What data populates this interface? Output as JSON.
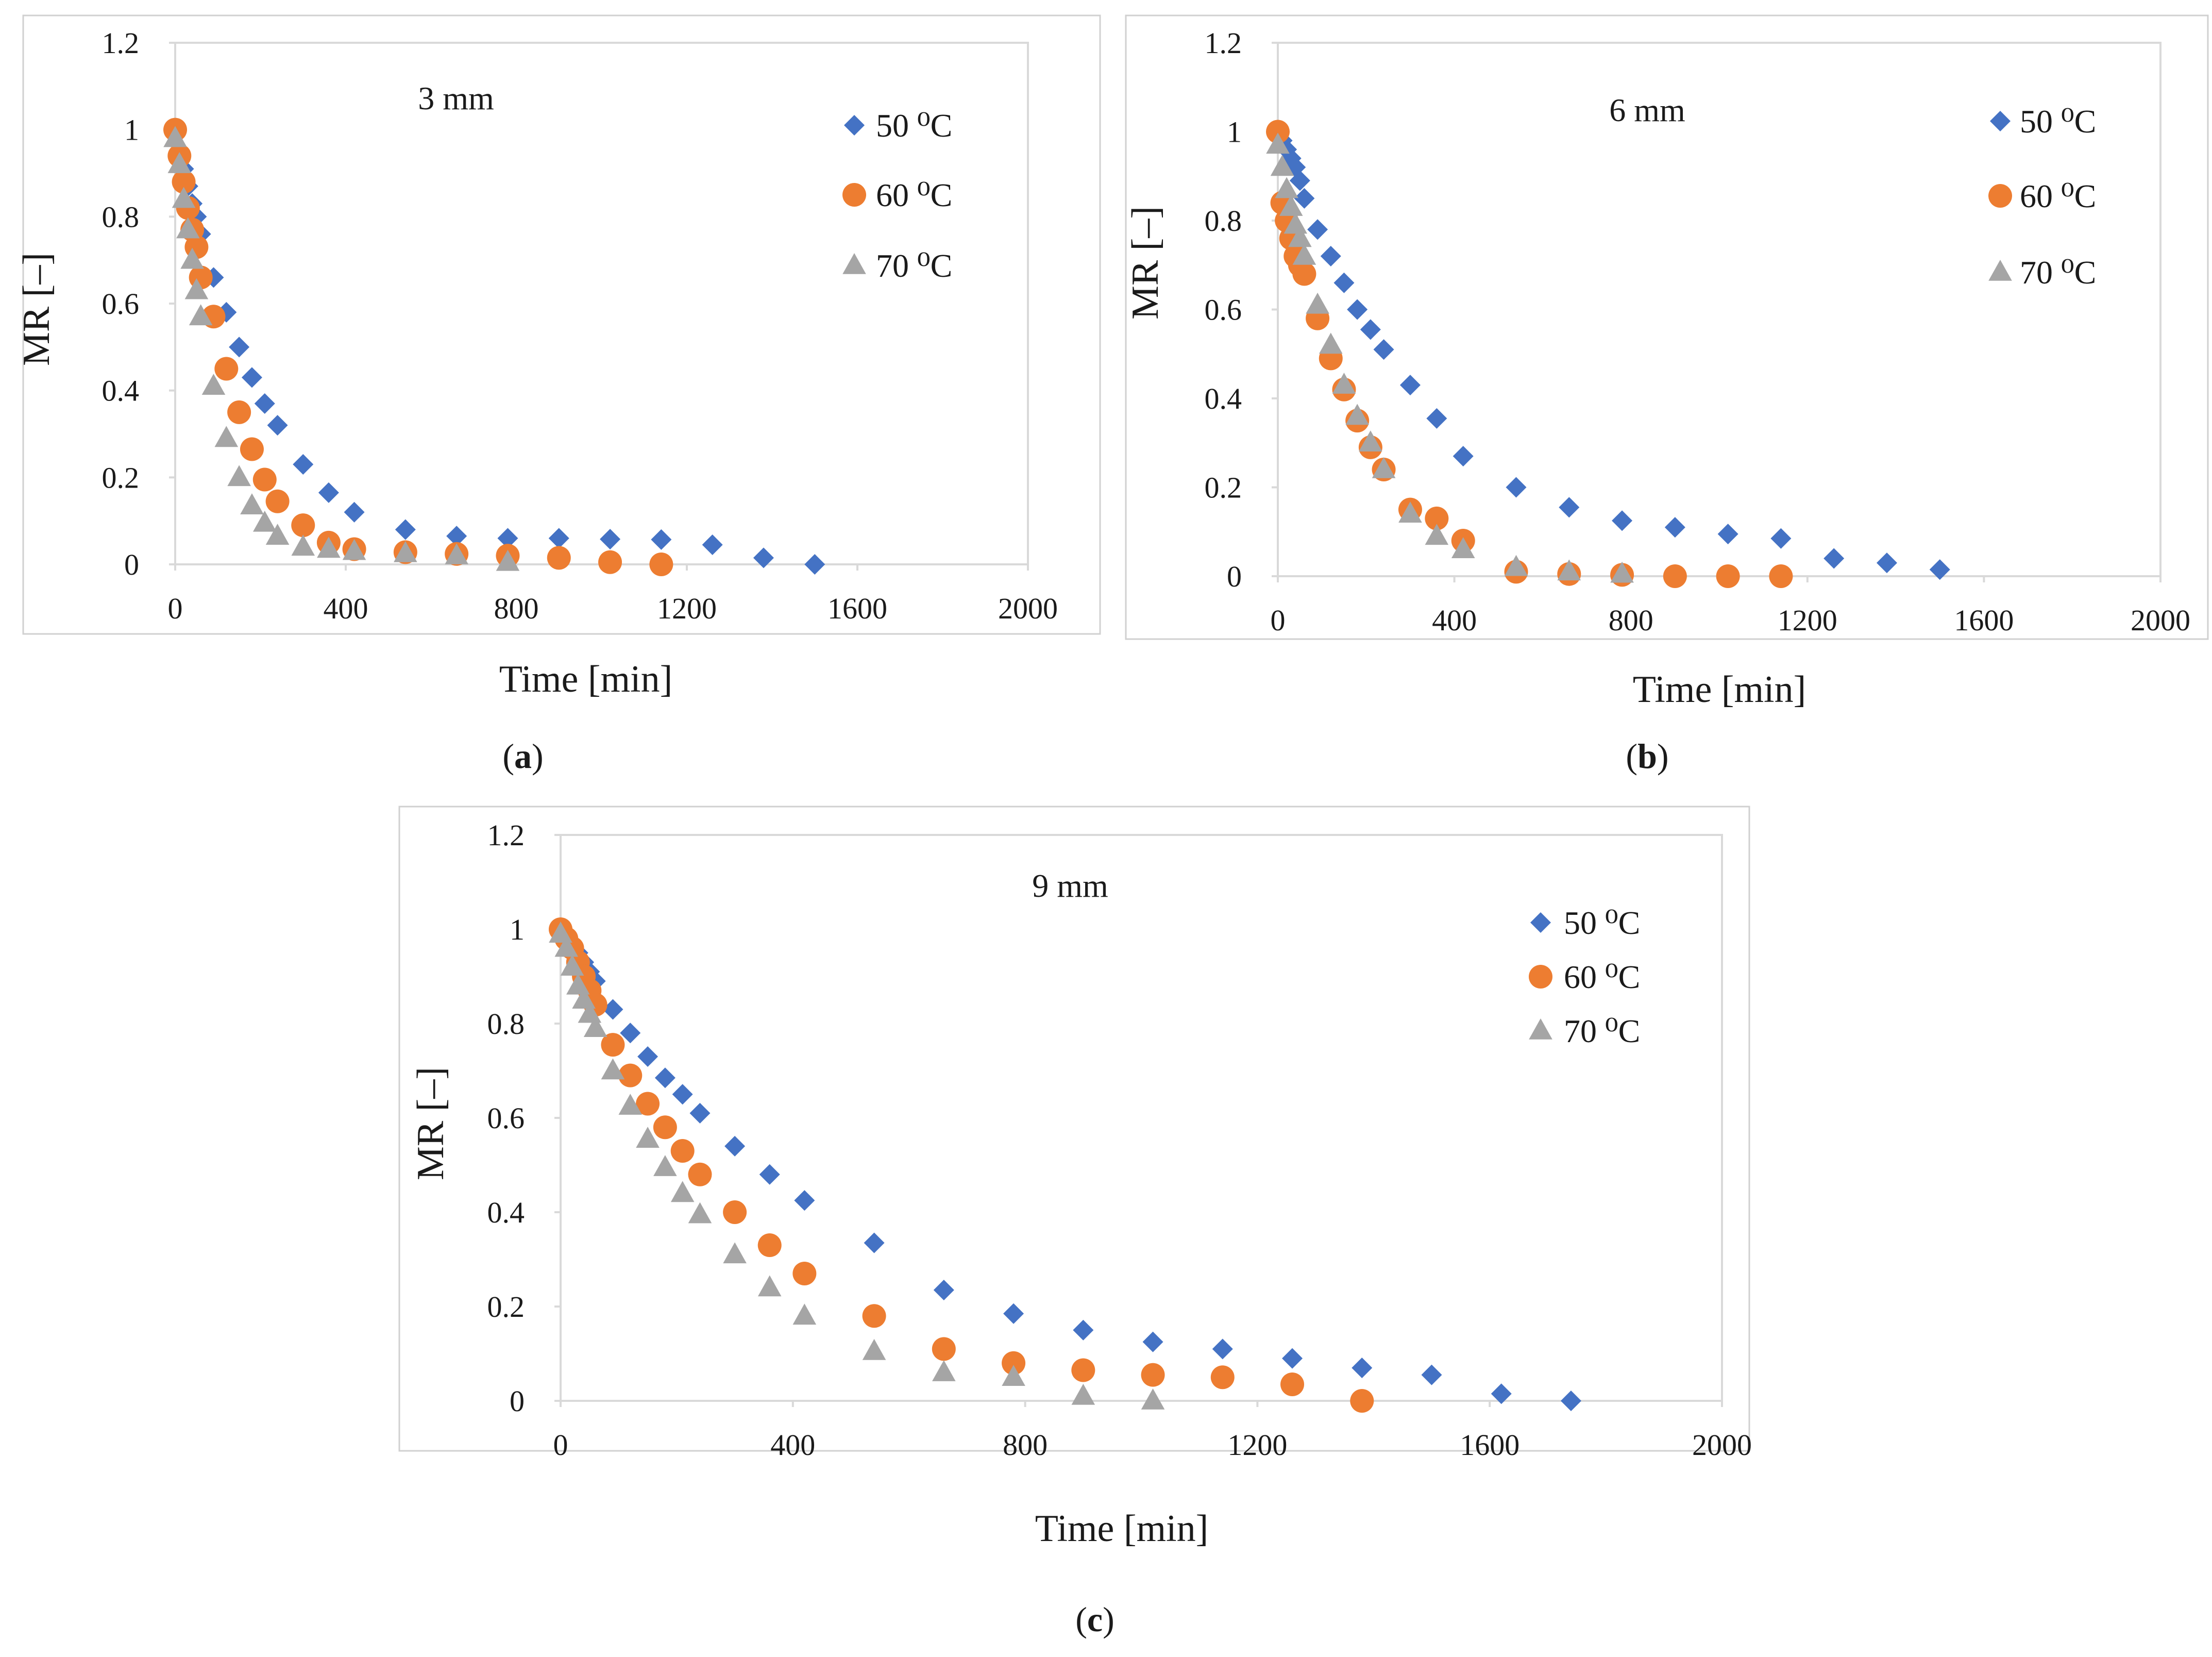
{
  "colors": {
    "s50": "#4472C4",
    "s60": "#ED7D31",
    "s70": "#A5A5A5",
    "axis": "#D9D9D9",
    "frame": "#D0D0D0"
  },
  "chart_data": [
    {
      "type": "scatter",
      "title": "3 mm",
      "caption_letter": "a",
      "xlabel": "Time [min]",
      "ylabel": "MR [–]",
      "xlim": [
        0,
        2000
      ],
      "ylim": [
        0,
        1.2
      ],
      "xticks": [
        0,
        400,
        800,
        1200,
        1600,
        2000
      ],
      "yticks": [
        "0",
        "0.2",
        "0.4",
        "0.6",
        "0.8",
        "1",
        "1.2"
      ],
      "series": [
        {
          "name": "50 ⁰C",
          "marker": "diamond",
          "x": [
            0,
            10,
            20,
            30,
            40,
            50,
            60,
            90,
            120,
            150,
            180,
            210,
            240,
            300,
            360,
            420,
            540,
            660,
            780,
            900,
            1020,
            1140,
            1260,
            1380,
            1500
          ],
          "y": [
            1,
            0.95,
            0.91,
            0.87,
            0.83,
            0.8,
            0.76,
            0.66,
            0.58,
            0.5,
            0.43,
            0.37,
            0.32,
            0.23,
            0.165,
            0.12,
            0.08,
            0.065,
            0.06,
            0.06,
            0.058,
            0.057,
            0.045,
            0.015,
            0
          ]
        },
        {
          "name": "60 ⁰C",
          "marker": "circle",
          "x": [
            0,
            10,
            20,
            30,
            40,
            50,
            60,
            90,
            120,
            150,
            180,
            210,
            240,
            300,
            360,
            420,
            540,
            660,
            780,
            900,
            1020,
            1140
          ],
          "y": [
            1,
            0.94,
            0.88,
            0.82,
            0.77,
            0.73,
            0.66,
            0.57,
            0.45,
            0.35,
            0.265,
            0.195,
            0.145,
            0.09,
            0.05,
            0.035,
            0.028,
            0.024,
            0.02,
            0.015,
            0.005,
            0
          ]
        },
        {
          "name": "70 ⁰C",
          "marker": "triangle",
          "x": [
            0,
            10,
            20,
            30,
            40,
            50,
            60,
            90,
            120,
            150,
            180,
            210,
            240,
            300,
            360,
            420,
            540,
            660,
            780
          ],
          "y": [
            0.98,
            0.92,
            0.84,
            0.77,
            0.7,
            0.63,
            0.57,
            0.41,
            0.29,
            0.2,
            0.135,
            0.095,
            0.065,
            0.04,
            0.035,
            0.03,
            0.025,
            0.02,
            0.005
          ]
        }
      ]
    },
    {
      "type": "scatter",
      "title": "6 mm",
      "caption_letter": "b",
      "xlabel": "Time [min]",
      "ylabel": "MR [–]",
      "xlim": [
        0,
        2000
      ],
      "ylim": [
        0,
        1.2
      ],
      "xticks": [
        0,
        400,
        800,
        1200,
        1600,
        2000
      ],
      "yticks": [
        "0",
        "0.2",
        "0.4",
        "0.6",
        "0.8",
        "1",
        "1.2"
      ],
      "series": [
        {
          "name": "50 ⁰C",
          "marker": "diamond",
          "x": [
            0,
            10,
            20,
            30,
            40,
            50,
            60,
            90,
            120,
            150,
            180,
            210,
            240,
            300,
            360,
            420,
            540,
            660,
            780,
            900,
            1020,
            1140,
            1260,
            1380,
            1500
          ],
          "y": [
            1,
            0.98,
            0.96,
            0.94,
            0.92,
            0.89,
            0.85,
            0.78,
            0.72,
            0.66,
            0.6,
            0.555,
            0.51,
            0.43,
            0.355,
            0.27,
            0.2,
            0.155,
            0.125,
            0.11,
            0.095,
            0.085,
            0.04,
            0.03,
            0.015
          ]
        },
        {
          "name": "60 ⁰C",
          "marker": "circle",
          "x": [
            0,
            10,
            20,
            30,
            40,
            50,
            60,
            90,
            120,
            150,
            180,
            210,
            240,
            300,
            360,
            420,
            540,
            660,
            780,
            900,
            1020,
            1140
          ],
          "y": [
            1,
            0.84,
            0.8,
            0.76,
            0.72,
            0.7,
            0.68,
            0.58,
            0.49,
            0.42,
            0.35,
            0.29,
            0.24,
            0.15,
            0.13,
            0.08,
            0.01,
            0.005,
            0.003,
            0,
            0,
            0
          ]
        },
        {
          "name": "70 ⁰C",
          "marker": "triangle",
          "x": [
            0,
            10,
            20,
            30,
            40,
            50,
            60,
            90,
            120,
            150,
            180,
            210,
            240,
            300,
            360,
            420,
            540,
            660,
            780
          ],
          "y": [
            0.97,
            0.92,
            0.87,
            0.83,
            0.79,
            0.76,
            0.72,
            0.61,
            0.52,
            0.43,
            0.36,
            0.3,
            0.24,
            0.14,
            0.09,
            0.06,
            0.02,
            0.01,
            0.005
          ]
        }
      ]
    },
    {
      "type": "scatter",
      "title": "9 mm",
      "caption_letter": "c",
      "xlabel": "Time [min]",
      "ylabel": "MR [–]",
      "xlim": [
        0,
        2000
      ],
      "ylim": [
        0,
        1.2
      ],
      "xticks": [
        0,
        400,
        800,
        1200,
        1600,
        2000
      ],
      "yticks": [
        "0",
        "0.2",
        "0.4",
        "0.6",
        "0.8",
        "1",
        "1.2"
      ],
      "series": [
        {
          "name": "50 ⁰C",
          "marker": "diamond",
          "x": [
            0,
            10,
            20,
            30,
            40,
            50,
            60,
            90,
            120,
            150,
            180,
            210,
            240,
            300,
            360,
            420,
            540,
            660,
            780,
            900,
            1020,
            1140,
            1260,
            1380,
            1500,
            1620,
            1740
          ],
          "y": [
            1,
            0.99,
            0.97,
            0.95,
            0.93,
            0.91,
            0.89,
            0.83,
            0.78,
            0.73,
            0.685,
            0.65,
            0.61,
            0.54,
            0.48,
            0.425,
            0.335,
            0.235,
            0.185,
            0.15,
            0.125,
            0.11,
            0.09,
            0.07,
            0.055,
            0.015,
            0
          ]
        },
        {
          "name": "60 ⁰C",
          "marker": "circle",
          "x": [
            0,
            10,
            20,
            30,
            40,
            50,
            60,
            90,
            120,
            150,
            180,
            210,
            240,
            300,
            360,
            420,
            540,
            660,
            780,
            900,
            1020,
            1140,
            1260,
            1380
          ],
          "y": [
            1,
            0.98,
            0.96,
            0.93,
            0.9,
            0.87,
            0.84,
            0.755,
            0.69,
            0.63,
            0.58,
            0.53,
            0.48,
            0.4,
            0.33,
            0.27,
            0.18,
            0.11,
            0.08,
            0.065,
            0.055,
            0.05,
            0.035,
            0
          ]
        },
        {
          "name": "70 ⁰C",
          "marker": "triangle",
          "x": [
            0,
            10,
            20,
            30,
            40,
            50,
            60,
            90,
            120,
            150,
            180,
            210,
            240,
            300,
            360,
            420,
            540,
            660,
            780,
            900,
            1020
          ],
          "y": [
            0.99,
            0.96,
            0.92,
            0.88,
            0.85,
            0.82,
            0.79,
            0.7,
            0.625,
            0.555,
            0.495,
            0.44,
            0.395,
            0.31,
            0.24,
            0.18,
            0.105,
            0.06,
            0.05,
            0.01,
            0
          ]
        }
      ]
    }
  ]
}
